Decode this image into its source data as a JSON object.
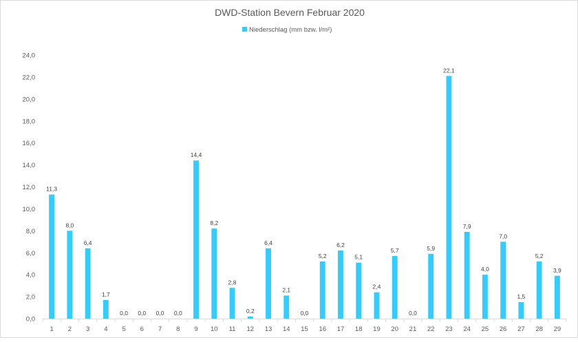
{
  "chart_data": {
    "type": "bar",
    "title": "DWD-Station Bevern Februar 2020",
    "legend": {
      "label": "Niederschlag (mm bzw. l/m²)",
      "position": "top"
    },
    "xlabel": "",
    "ylabel": "",
    "ylim": [
      0,
      24
    ],
    "ytick_step": 2,
    "ytick_labels": [
      "0,0",
      "2,0",
      "4,0",
      "6,0",
      "8,0",
      "10,0",
      "12,0",
      "14,0",
      "16,0",
      "18,0",
      "20,0",
      "22,0",
      "24,0"
    ],
    "grid": false,
    "categories": [
      "1",
      "2",
      "3",
      "4",
      "5",
      "6",
      "7",
      "8",
      "9",
      "10",
      "11",
      "12",
      "13",
      "14",
      "15",
      "16",
      "17",
      "18",
      "19",
      "20",
      "21",
      "22",
      "23",
      "24",
      "25",
      "26",
      "27",
      "28",
      "29"
    ],
    "series": [
      {
        "name": "Niederschlag (mm bzw. l/m²)",
        "color": "#33ccff",
        "values": [
          11.3,
          8.0,
          6.4,
          1.7,
          0.0,
          0.0,
          0.0,
          0.0,
          14.4,
          8.2,
          2.8,
          0.2,
          6.4,
          2.1,
          0.0,
          5.2,
          6.2,
          5.1,
          2.4,
          5.7,
          0.0,
          5.9,
          22.1,
          7.9,
          4.0,
          7.0,
          1.5,
          5.2,
          3.9
        ],
        "data_labels": [
          "11,3",
          "8,0",
          "6,4",
          "1,7",
          "0,0",
          "0,0",
          "0,0",
          "0,0",
          "14,4",
          "8,2",
          "2,8",
          "0,2",
          "6,4",
          "2,1",
          "0,0",
          "5,2",
          "6,2",
          "5,1",
          "2,4",
          "5,7",
          "0,0",
          "5,9",
          "22,1",
          "7,9",
          "4,0",
          "7,0",
          "1,5",
          "5,2",
          "3,9"
        ]
      }
    ]
  }
}
